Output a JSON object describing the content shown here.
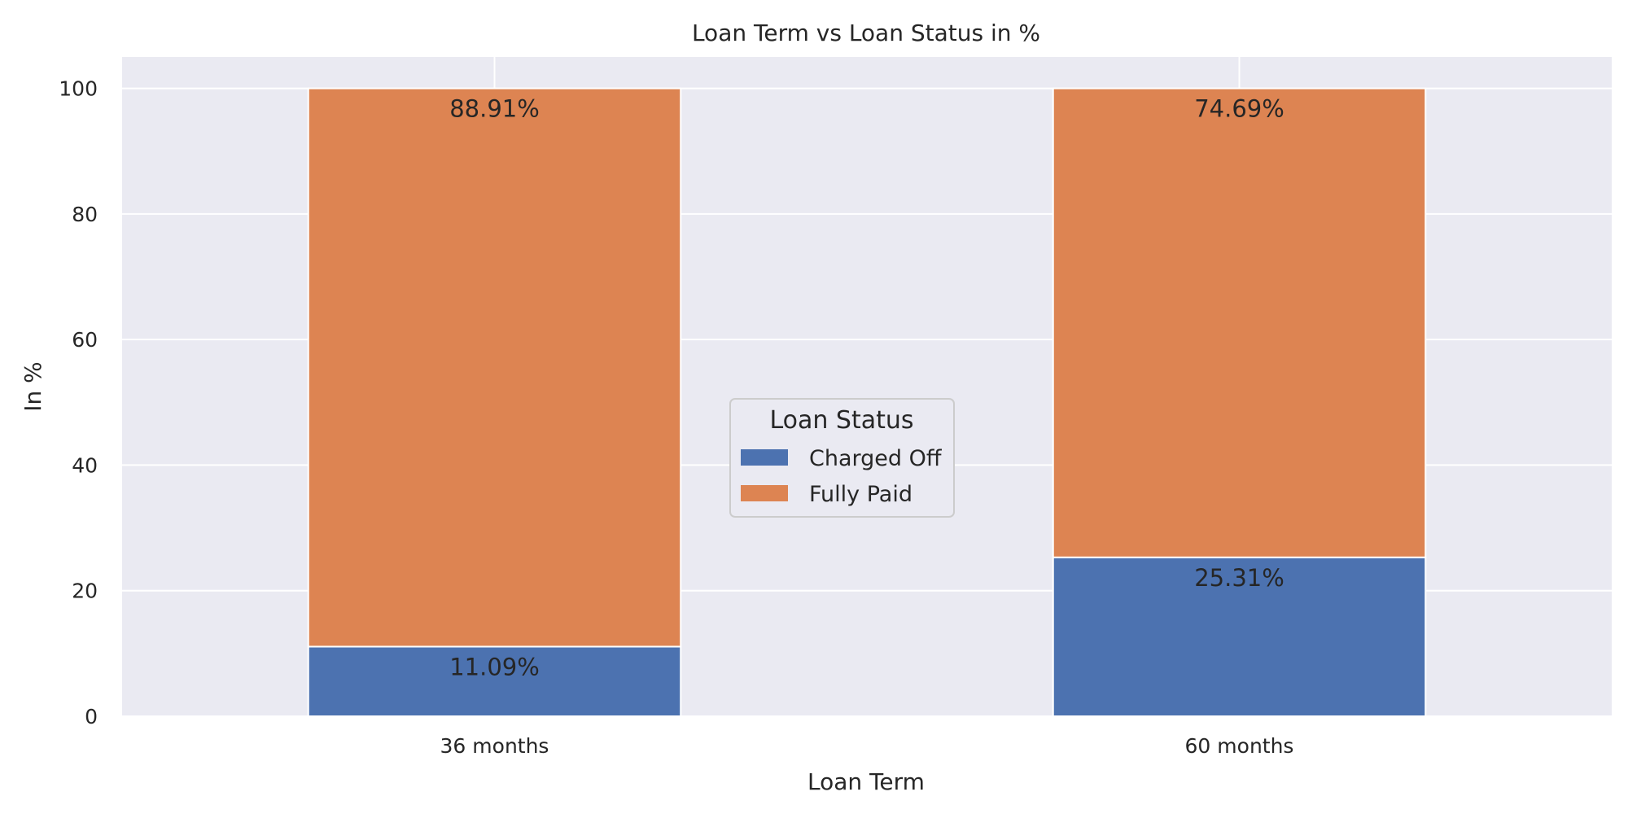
{
  "chart_data": {
    "type": "bar",
    "stacked": true,
    "title": "Loan Term vs Loan Status in %",
    "xlabel": "Loan Term",
    "ylabel": "In %",
    "categories": [
      "36 months",
      "60 months"
    ],
    "series": [
      {
        "name": "Charged Off",
        "values": [
          11.09,
          25.31
        ],
        "labels": [
          "11.09%",
          "25.31%"
        ],
        "color": "#4c72b0"
      },
      {
        "name": "Fully Paid",
        "values": [
          88.91,
          74.69
        ],
        "labels": [
          "88.91%",
          "74.69%"
        ],
        "color": "#dd8452"
      }
    ],
    "ylim": [
      0,
      105
    ],
    "yticks": [
      0,
      20,
      40,
      60,
      80,
      100
    ],
    "grid": true,
    "legend": {
      "title": "Loan Status",
      "placement": "center"
    },
    "colors": {
      "background": "#eaeaf2",
      "grid": "#ffffff",
      "text": "#262626"
    }
  }
}
